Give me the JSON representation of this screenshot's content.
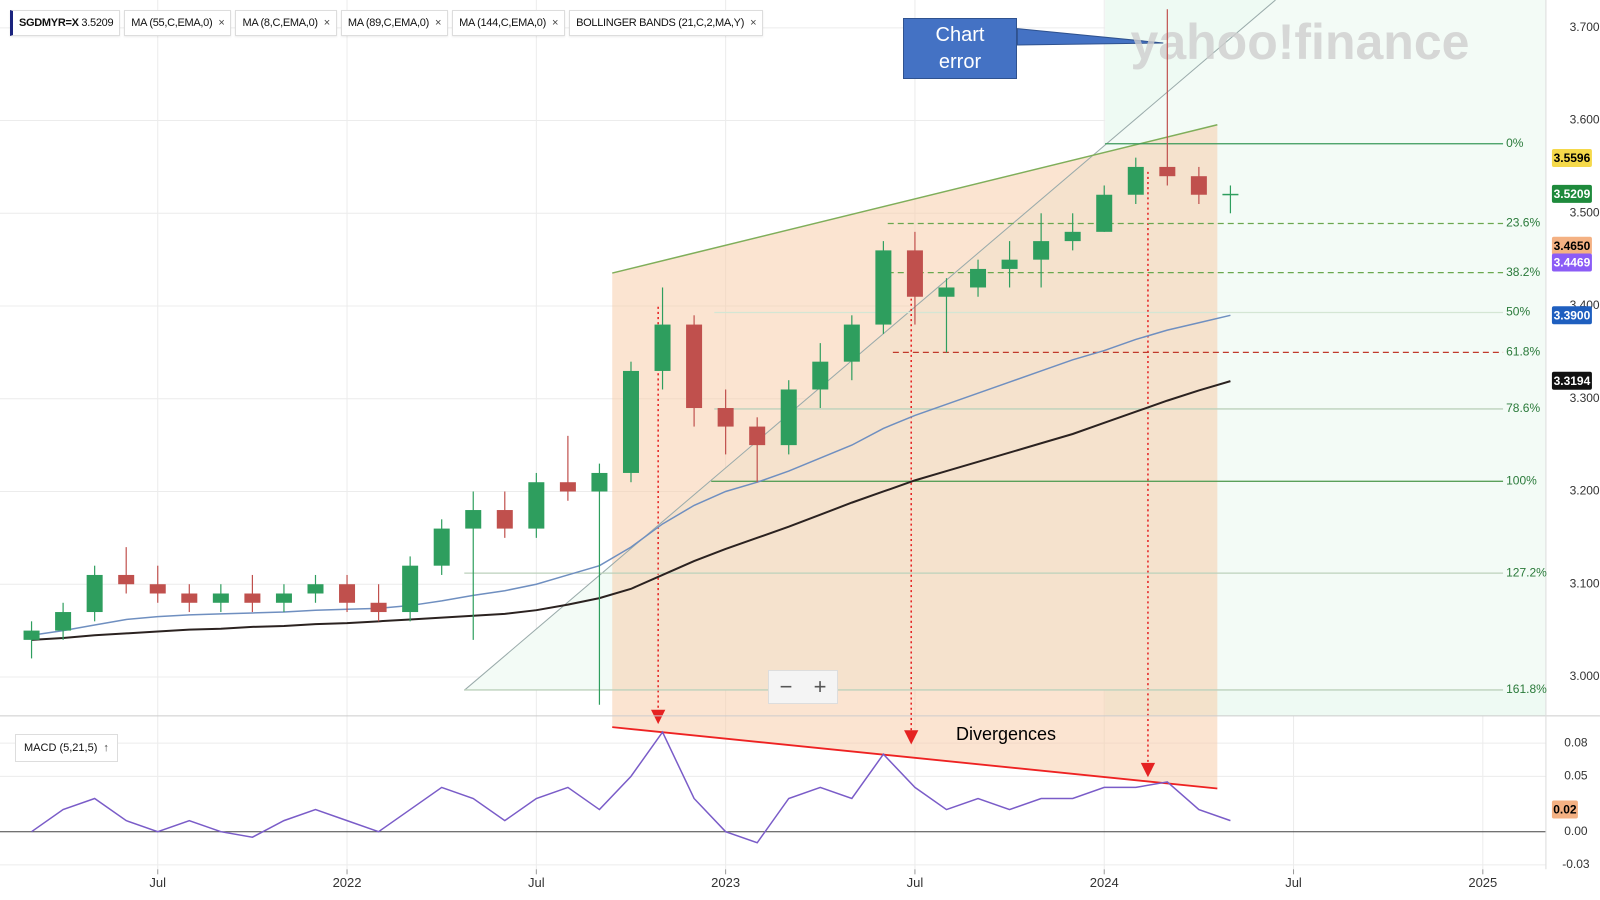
{
  "chart_data": {
    "type": "candlestick",
    "symbol": "SGDMYR=X",
    "price": 3.5209,
    "indicators": [
      {
        "name": "MA (55,C,EMA,0)"
      },
      {
        "name": "MA (8,C,EMA,0)"
      },
      {
        "name": "MA (89,C,EMA,0)",
        "color": "#6f8fc0",
        "values": [
          3.045,
          3.05,
          3.056,
          3.062,
          3.065,
          3.067,
          3.068,
          3.069,
          3.07,
          3.072,
          3.073,
          3.074,
          3.077,
          3.082,
          3.088,
          3.093,
          3.1,
          3.11,
          3.12,
          3.14,
          3.165,
          3.185,
          3.2,
          3.21,
          3.222,
          3.236,
          3.25,
          3.268,
          3.282,
          3.294,
          3.306,
          3.318,
          3.33,
          3.342,
          3.352,
          3.364,
          3.374,
          3.382,
          3.39
        ]
      },
      {
        "name": "MA (144,C,EMA,0)",
        "color": "#2b2220",
        "values": [
          3.04,
          3.042,
          3.045,
          3.047,
          3.049,
          3.051,
          3.052,
          3.054,
          3.055,
          3.057,
          3.058,
          3.06,
          3.062,
          3.064,
          3.066,
          3.068,
          3.072,
          3.078,
          3.085,
          3.095,
          3.11,
          3.125,
          3.138,
          3.15,
          3.162,
          3.175,
          3.188,
          3.2,
          3.212,
          3.222,
          3.232,
          3.242,
          3.252,
          3.262,
          3.274,
          3.286,
          3.298,
          3.309,
          3.319
        ]
      },
      {
        "name": "BOLLINGER BANDS (21,C,2,MA,Y)"
      }
    ],
    "x": [
      "2021-03",
      "2021-04",
      "2021-05",
      "2021-06",
      "2021-07",
      "2021-08",
      "2021-09",
      "2021-10",
      "2021-11",
      "2021-12",
      "2022-01",
      "2022-02",
      "2022-03",
      "2022-04",
      "2022-05",
      "2022-06",
      "2022-07",
      "2022-08",
      "2022-09",
      "2022-10",
      "2022-11",
      "2022-12",
      "2023-01",
      "2023-02",
      "2023-03",
      "2023-04",
      "2023-05",
      "2023-06",
      "2023-07",
      "2023-08",
      "2023-09",
      "2023-10",
      "2023-11",
      "2023-12",
      "2024-01",
      "2024-02",
      "2024-03",
      "2024-04",
      "2024-05"
    ],
    "open": [
      3.04,
      3.05,
      3.07,
      3.11,
      3.1,
      3.09,
      3.08,
      3.09,
      3.08,
      3.09,
      3.1,
      3.08,
      3.07,
      3.12,
      3.16,
      3.18,
      3.16,
      3.21,
      3.2,
      3.22,
      3.33,
      3.38,
      3.29,
      3.27,
      3.25,
      3.31,
      3.34,
      3.38,
      3.46,
      3.41,
      3.42,
      3.44,
      3.45,
      3.47,
      3.48,
      3.52,
      3.55,
      3.54,
      3.52
    ],
    "high": [
      3.06,
      3.08,
      3.12,
      3.14,
      3.12,
      3.1,
      3.1,
      3.11,
      3.1,
      3.11,
      3.11,
      3.1,
      3.13,
      3.17,
      3.2,
      3.2,
      3.22,
      3.26,
      3.23,
      3.34,
      3.42,
      3.39,
      3.31,
      3.28,
      3.32,
      3.36,
      3.39,
      3.47,
      3.48,
      3.43,
      3.45,
      3.47,
      3.5,
      3.5,
      3.53,
      3.56,
      3.72,
      3.55,
      3.53
    ],
    "low": [
      3.02,
      3.04,
      3.06,
      3.09,
      3.08,
      3.07,
      3.07,
      3.07,
      3.07,
      3.08,
      3.07,
      3.06,
      3.06,
      3.11,
      3.04,
      3.15,
      3.15,
      3.19,
      2.97,
      3.21,
      3.31,
      3.27,
      3.24,
      3.21,
      3.24,
      3.29,
      3.32,
      3.37,
      3.38,
      3.35,
      3.41,
      3.42,
      3.42,
      3.46,
      3.48,
      3.51,
      3.53,
      3.51,
      3.5
    ],
    "close": [
      3.05,
      3.07,
      3.11,
      3.1,
      3.09,
      3.08,
      3.09,
      3.08,
      3.09,
      3.1,
      3.08,
      3.07,
      3.12,
      3.16,
      3.18,
      3.16,
      3.21,
      3.2,
      3.22,
      3.33,
      3.38,
      3.29,
      3.27,
      3.25,
      3.31,
      3.34,
      3.38,
      3.46,
      3.41,
      3.42,
      3.44,
      3.45,
      3.47,
      3.48,
      3.52,
      3.55,
      3.54,
      3.52,
      3.521
    ],
    "up_color": "#2e9e5e",
    "down_color": "#c0504d",
    "xlim": [
      "2021-02",
      "2025-03"
    ],
    "xticks": [
      {
        "value": "2021-07",
        "label": "Jul"
      },
      {
        "value": "2022-01",
        "label": "2022"
      },
      {
        "value": "2022-07",
        "label": "Jul"
      },
      {
        "value": "2023-01",
        "label": "2023"
      },
      {
        "value": "2023-07",
        "label": "Jul"
      },
      {
        "value": "2024-01",
        "label": "2024"
      },
      {
        "value": "2024-07",
        "label": "Jul"
      },
      {
        "value": "2025-01",
        "label": "2025"
      }
    ],
    "ylim": [
      2.958,
      3.73
    ],
    "yticks": [
      {
        "value": 3.0,
        "label": "3.0000"
      },
      {
        "value": 3.1,
        "label": "3.1000"
      },
      {
        "value": 3.2,
        "label": "3.2000"
      },
      {
        "value": 3.3,
        "label": "3.3000"
      },
      {
        "value": 3.4,
        "label": "3.4000"
      },
      {
        "value": 3.5,
        "label": "3.5000"
      },
      {
        "value": 3.6,
        "label": "3.6000"
      },
      {
        "value": 3.7,
        "label": "3.7000"
      }
    ],
    "grid": true,
    "fib_levels": [
      {
        "value": 3.575,
        "label": "0%",
        "color": "#3a9a5a",
        "dashed": false
      },
      {
        "value": 3.489,
        "label": "23.6%",
        "color": "#6aa84f",
        "dashed": true
      },
      {
        "value": 3.436,
        "label": "38.2%",
        "color": "#6aa84f",
        "dashed": true
      },
      {
        "value": 3.393,
        "label": "50%",
        "color": "#d4e6d4",
        "dashed": false
      },
      {
        "value": 3.35,
        "label": "61.8%",
        "color": "#c0392b",
        "dashed": true
      },
      {
        "value": 3.289,
        "label": "78.6%",
        "color": "#bcd1bc",
        "dashed": false
      },
      {
        "value": 3.211,
        "label": "100%",
        "color": "#5aa05a",
        "dashed": false
      },
      {
        "value": 3.112,
        "label": "127.2%",
        "color": "#bcd1bc",
        "dashed": false
      },
      {
        "value": 2.986,
        "label": "161.8%",
        "color": "#bcd1bc",
        "dashed": false
      }
    ],
    "price_badges": [
      {
        "value": 3.5596,
        "color": "#f5d94a",
        "text_color": "#000"
      },
      {
        "value": 3.5209,
        "color": "#1e8a3c",
        "text_color": "#fff"
      },
      {
        "value": 3.465,
        "label": "3.4650",
        "color": "#f4b183",
        "text_color": "#000"
      },
      {
        "value": 3.4469,
        "color": "#8b5cf6",
        "text_color": "#fff"
      },
      {
        "value": 3.39,
        "label": "3.3900",
        "color": "#1f5fbf",
        "text_color": "#fff"
      },
      {
        "value": 3.3194,
        "color": "#111111",
        "text_color": "#fff"
      }
    ],
    "macd": {
      "type": "line",
      "name": "MACD (5,21,5)",
      "color": "#7a5cc8",
      "values": [
        0.0,
        0.02,
        0.03,
        0.01,
        0.0,
        0.01,
        0.0,
        -0.005,
        0.01,
        0.02,
        0.01,
        0.0,
        0.02,
        0.04,
        0.03,
        0.01,
        0.03,
        0.04,
        0.02,
        0.05,
        0.09,
        0.03,
        0.0,
        -0.01,
        0.03,
        0.04,
        0.03,
        0.07,
        0.04,
        0.02,
        0.03,
        0.02,
        0.03,
        0.03,
        0.04,
        0.04,
        0.045,
        0.02,
        0.01
      ],
      "ylim": [
        -0.034,
        0.1
      ],
      "yticks": [
        0.08,
        0.05,
        {
          "value": 0,
          "label": "0.00"
        },
        -0.03
      ],
      "badge": {
        "value": 0.02,
        "color": "#f4b183"
      }
    },
    "annotations": {
      "chart_error": "Chart error",
      "divergences": "Divergences"
    },
    "watermark": "yahoo!finance",
    "zoom": [
      "−",
      "+"
    ]
  }
}
